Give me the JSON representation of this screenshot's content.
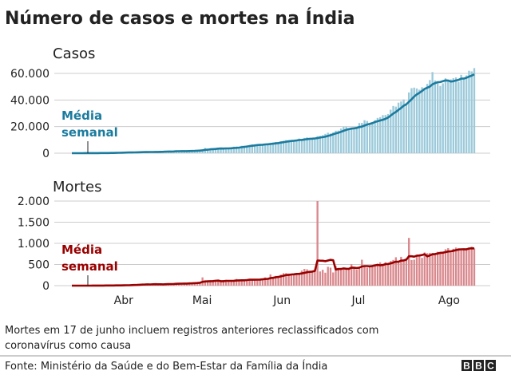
{
  "title": "Número de casos e mortes na Índia",
  "note_line1": "Mortes em 17 de junho incluem registros anteriores reclassificados com",
  "note_line2": "coronavírus como causa",
  "source": "Fonte: Ministério da Saúde e do Bem-Estar da Família da Índia",
  "logo": [
    "B",
    "B",
    "C"
  ],
  "chart_data": [
    {
      "type": "bar",
      "title": "Casos",
      "annotation": [
        "Média",
        "semanal"
      ],
      "start_date": "2020-03-15",
      "ylim": [
        0,
        65000
      ],
      "yticks": [
        0,
        20000,
        40000,
        60000
      ],
      "ytick_labels": [
        "0",
        "20.000",
        "40.000",
        "60.000"
      ],
      "grid": true,
      "colors": {
        "bar": "#9ccadb",
        "line": "#1b7b9e",
        "annotation": "#1b7b9e"
      },
      "daily": [
        20,
        15,
        25,
        28,
        40,
        60,
        80,
        90,
        75,
        85,
        90,
        160,
        150,
        110,
        230,
        330,
        400,
        440,
        500,
        520,
        600,
        500,
        700,
        550,
        800,
        850,
        900,
        1000,
        950,
        800,
        850,
        1050,
        1000,
        1100,
        1300,
        1400,
        1600,
        1300,
        1300,
        1400,
        1750,
        1600,
        1900,
        1500,
        1500,
        1800,
        1750,
        2300,
        2400,
        2500,
        2900,
        3900,
        2900,
        3500,
        3300,
        3300,
        4200,
        3600,
        3500,
        3700,
        3700,
        3900,
        4900,
        5000,
        4600,
        5600,
        5600,
        5600,
        6100,
        6600,
        6700,
        6500,
        6500,
        6400,
        7200,
        7300,
        7900,
        8000,
        8400,
        8000,
        8900,
        9300,
        9800,
        9900,
        9900,
        9900,
        9700,
        11000,
        10000,
        11500,
        11900,
        11500,
        11000,
        10700,
        12800,
        13000,
        13500,
        14500,
        15400,
        14800,
        15600,
        16900,
        17000,
        18500,
        19900,
        20000,
        18500,
        18600,
        18700,
        19100,
        22700,
        22800,
        24800,
        24200,
        22200,
        22700,
        24800,
        26500,
        27100,
        28600,
        28700,
        29400,
        32700,
        35500,
        35000,
        38000,
        38900,
        40400,
        37100,
        45700,
        48900,
        49300,
        48700,
        47700,
        49600,
        48500,
        52100,
        55000,
        61000,
        54700,
        52900,
        50600,
        52500,
        56300,
        54500,
        55500,
        56400,
        57000,
        53600,
        58900,
        56900,
        58500,
        62000,
        61500,
        64000
      ]
    },
    {
      "type": "bar",
      "title": "Mortes",
      "annotation": [
        "Média",
        "semanal"
      ],
      "start_date": "2020-03-15",
      "ylim": [
        0,
        2000
      ],
      "yticks": [
        0,
        500,
        1000,
        1500,
        2000
      ],
      "ytick_labels": [
        "0",
        "500",
        "1.000",
        "1.500",
        "2.000"
      ],
      "xtick_labels": [
        "Abr",
        "Mai",
        "Jun",
        "Jul",
        "Ago"
      ],
      "xtick_dates": [
        "2020-04-01",
        "2020-05-01",
        "2020-06-01",
        "2020-07-01",
        "2020-08-01"
      ],
      "grid": true,
      "colors": {
        "bar": "#d9898d",
        "line": "#990000",
        "annotation": "#990000"
      },
      "daily": [
        0,
        0,
        1,
        0,
        1,
        0,
        1,
        3,
        1,
        1,
        3,
        4,
        4,
        6,
        2,
        6,
        3,
        9,
        5,
        13,
        13,
        17,
        7,
        33,
        20,
        20,
        40,
        31,
        35,
        27,
        31,
        38,
        36,
        26,
        36,
        23,
        43,
        47,
        50,
        50,
        50,
        50,
        40,
        50,
        55,
        70,
        70,
        75,
        72,
        80,
        195,
        126,
        90,
        100,
        95,
        115,
        115,
        100,
        130,
        135,
        100,
        100,
        120,
        157,
        134,
        140,
        136,
        140,
        148,
        137,
        142,
        148,
        154,
        170,
        194,
        175,
        265,
        193,
        230,
        217,
        260,
        295,
        294,
        287,
        261,
        266,
        273,
        279,
        357,
        396,
        386,
        325,
        311,
        380,
        2003,
        336,
        375,
        306,
        445,
        425,
        312,
        465,
        418,
        384,
        410,
        380,
        418,
        508,
        434,
        379,
        440,
        613,
        442,
        425,
        467,
        482,
        482,
        519,
        551,
        500,
        553,
        500,
        582,
        606,
        671,
        543,
        681,
        587,
        640,
        1129,
        606,
        614,
        705,
        708,
        657,
        785,
        768,
        775,
        774,
        760,
        800,
        771,
        803,
        860,
        886,
        780,
        871,
        900,
        880,
        834,
        871,
        880,
        900,
        920,
        880
      ]
    }
  ]
}
